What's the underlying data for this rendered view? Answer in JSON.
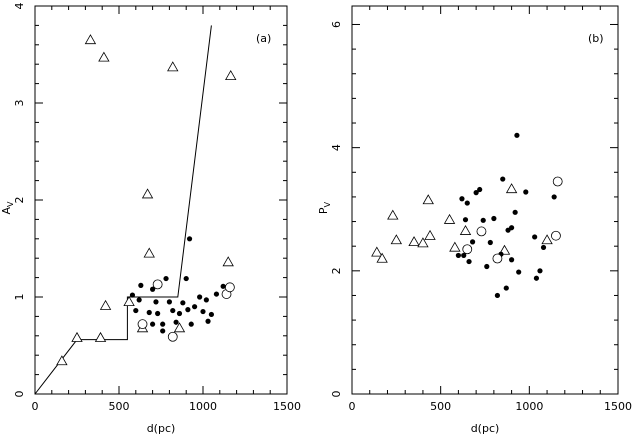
{
  "chart_data": [
    {
      "type": "scatter",
      "panel_label": "(a)",
      "xlabel": "d(pc)",
      "ylabel": "A",
      "ylabel_sub": "V",
      "xlim": [
        0,
        1500
      ],
      "ylim": [
        0,
        4
      ],
      "xticks": [
        0,
        500,
        1000,
        1500
      ],
      "yticks": [
        0,
        1,
        2,
        3,
        4
      ],
      "grid": false,
      "series": [
        {
          "marker": "triangle",
          "points": [
            [
              160,
              0.34
            ],
            [
              250,
              0.58
            ],
            [
              390,
              0.58
            ],
            [
              420,
              0.91
            ],
            [
              330,
              3.65
            ],
            [
              410,
              3.47
            ],
            [
              560,
              0.95
            ],
            [
              640,
              0.68
            ],
            [
              670,
              2.06
            ],
            [
              680,
              1.45
            ],
            [
              820,
              3.37
            ],
            [
              860,
              0.68
            ],
            [
              1150,
              1.36
            ],
            [
              1165,
              3.28
            ]
          ]
        },
        {
          "marker": "dot",
          "points": [
            [
              580,
              1.02
            ],
            [
              620,
              0.97
            ],
            [
              630,
              1.12
            ],
            [
              600,
              0.86
            ],
            [
              650,
              0.72
            ],
            [
              680,
              0.84
            ],
            [
              700,
              1.08
            ],
            [
              720,
              0.95
            ],
            [
              730,
              0.83
            ],
            [
              760,
              0.65
            ],
            [
              780,
              1.19
            ],
            [
              820,
              0.86
            ],
            [
              840,
              0.74
            ],
            [
              860,
              0.83
            ],
            [
              880,
              0.94
            ],
            [
              900,
              1.19
            ],
            [
              910,
              0.87
            ],
            [
              920,
              1.6
            ],
            [
              930,
              0.72
            ],
            [
              950,
              0.9
            ],
            [
              980,
              1.0
            ],
            [
              1000,
              0.85
            ],
            [
              1020,
              0.97
            ],
            [
              1030,
              0.75
            ],
            [
              1050,
              0.82
            ],
            [
              1080,
              1.03
            ],
            [
              1120,
              1.11
            ],
            [
              760,
              0.72
            ],
            [
              700,
              0.72
            ],
            [
              800,
              0.95
            ]
          ]
        },
        {
          "marker": "circle",
          "points": [
            [
              640,
              0.72
            ],
            [
              730,
              1.13
            ],
            [
              820,
              0.59
            ],
            [
              1140,
              1.03
            ],
            [
              1160,
              1.1
            ]
          ]
        }
      ],
      "lines": [
        [
          [
            0,
            0
          ],
          [
            250,
            0.56
          ],
          [
            550,
            0.56
          ],
          [
            550,
            1.0
          ],
          [
            850,
            1.0
          ],
          [
            1050,
            3.8
          ]
        ]
      ]
    },
    {
      "type": "scatter",
      "panel_label": "(b)",
      "xlabel": "d(pc)",
      "ylabel": "P",
      "ylabel_sub": "V",
      "xlim": [
        0,
        1500
      ],
      "ylim": [
        0,
        6.3
      ],
      "xticks": [
        0,
        500,
        1000,
        1500
      ],
      "yticks": [
        0,
        2,
        4,
        6
      ],
      "grid": false,
      "series": [
        {
          "marker": "triangle",
          "points": [
            [
              140,
              2.3
            ],
            [
              170,
              2.2
            ],
            [
              230,
              2.9
            ],
            [
              250,
              2.5
            ],
            [
              350,
              2.47
            ],
            [
              400,
              2.45
            ],
            [
              430,
              3.15
            ],
            [
              440,
              2.57
            ],
            [
              550,
              2.83
            ],
            [
              580,
              2.38
            ],
            [
              640,
              2.65
            ],
            [
              860,
              2.33
            ],
            [
              900,
              3.33
            ],
            [
              1100,
              2.5
            ]
          ]
        },
        {
          "marker": "dot",
          "points": [
            [
              600,
              2.25
            ],
            [
              620,
              3.17
            ],
            [
              630,
              2.25
            ],
            [
              640,
              2.83
            ],
            [
              650,
              3.1
            ],
            [
              660,
              2.15
            ],
            [
              680,
              2.47
            ],
            [
              700,
              3.27
            ],
            [
              720,
              3.32
            ],
            [
              740,
              2.82
            ],
            [
              760,
              2.07
            ],
            [
              780,
              2.46
            ],
            [
              800,
              2.85
            ],
            [
              820,
              1.6
            ],
            [
              840,
              2.27
            ],
            [
              850,
              3.49
            ],
            [
              870,
              1.72
            ],
            [
              880,
              2.66
            ],
            [
              900,
              2.18
            ],
            [
              920,
              2.95
            ],
            [
              930,
              4.2
            ],
            [
              940,
              1.98
            ],
            [
              980,
              3.28
            ],
            [
              1030,
              2.55
            ],
            [
              1040,
              1.88
            ],
            [
              1060,
              2.0
            ],
            [
              1080,
              2.38
            ],
            [
              1140,
              3.2
            ],
            [
              900,
              2.7
            ]
          ]
        },
        {
          "marker": "circle",
          "points": [
            [
              650,
              2.35
            ],
            [
              730,
              2.64
            ],
            [
              820,
              2.2
            ],
            [
              1150,
              2.57
            ],
            [
              1160,
              3.45
            ]
          ]
        }
      ],
      "lines": []
    }
  ]
}
